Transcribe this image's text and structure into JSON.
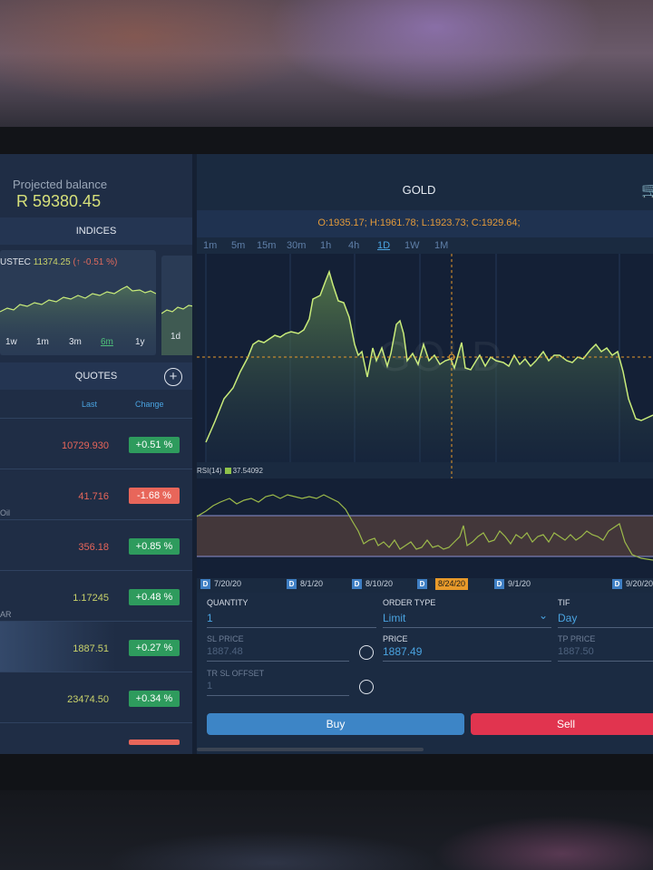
{
  "balance": {
    "label": "Projected balance",
    "value": "R 59380.45"
  },
  "indices": {
    "header": "INDICES",
    "card": {
      "symbol": "USTEC",
      "price": "11374.25",
      "change": "(↑ -0.51 %)"
    },
    "timeframes": [
      "1w",
      "1m",
      "3m",
      "6m",
      "1y"
    ],
    "selected_timeframe": "6m",
    "second_card_timeframe": "1d"
  },
  "quotes": {
    "header": "QUOTES",
    "col_last": "Last",
    "col_change": "Change",
    "rows": [
      {
        "last": "10729.930",
        "change": "+0.51 %",
        "dir": "up",
        "sub": ""
      },
      {
        "last": "41.716",
        "change": "-1.68 %",
        "dir": "down",
        "sub": "Oil"
      },
      {
        "last": "356.18",
        "change": "+0.85 %",
        "dir": "up",
        "sub": ""
      },
      {
        "last": "1.17245",
        "change": "+0.48 %",
        "dir": "up",
        "sub": "AR"
      },
      {
        "last": "1887.51",
        "change": "+0.27 %",
        "dir": "up",
        "sub": ""
      },
      {
        "last": "23474.50",
        "change": "+0.34 %",
        "dir": "up",
        "sub": ""
      }
    ]
  },
  "chart": {
    "title": "GOLD",
    "ohlc": "O:1935.17; H:1961.78; L:1923.73; C:1929.64;",
    "timeframes": [
      "1m",
      "5m",
      "15m",
      "30m",
      "1h",
      "4h",
      "1D",
      "1W",
      "1M"
    ],
    "selected_timeframe": "1D",
    "watermark": "GOLD",
    "rsi_label": "RSI(14)",
    "rsi_value": "37.54092",
    "dates": [
      "7/20/20",
      "8/1/20",
      "8/10/20",
      "9/1/20",
      "9/20/20"
    ],
    "date_marker": "D",
    "highlight_date": "8/24/20",
    "colors": {
      "line": "#c9ec7a",
      "rsi_line": "#9dbb4a",
      "up": "#2e9b5d",
      "down": "#e8665a",
      "crosshair": "#e89a2a"
    }
  },
  "order": {
    "quantity_label": "QUANTITY",
    "quantity_value": "1",
    "order_type_label": "ORDER TYPE",
    "order_type_value": "Limit",
    "tif_label": "TIF",
    "tif_value": "Day",
    "sl_price_label": "SL PRICE",
    "sl_price_value": "1887.48",
    "price_label": "PRICE",
    "price_value": "1887.49",
    "tp_price_label": "TP PRICE",
    "tp_price_value": "1887.50",
    "tr_sl_label": "TR SL OFFSET",
    "tr_sl_value": "1",
    "buy_label": "Buy",
    "sell_label": "Sell"
  }
}
